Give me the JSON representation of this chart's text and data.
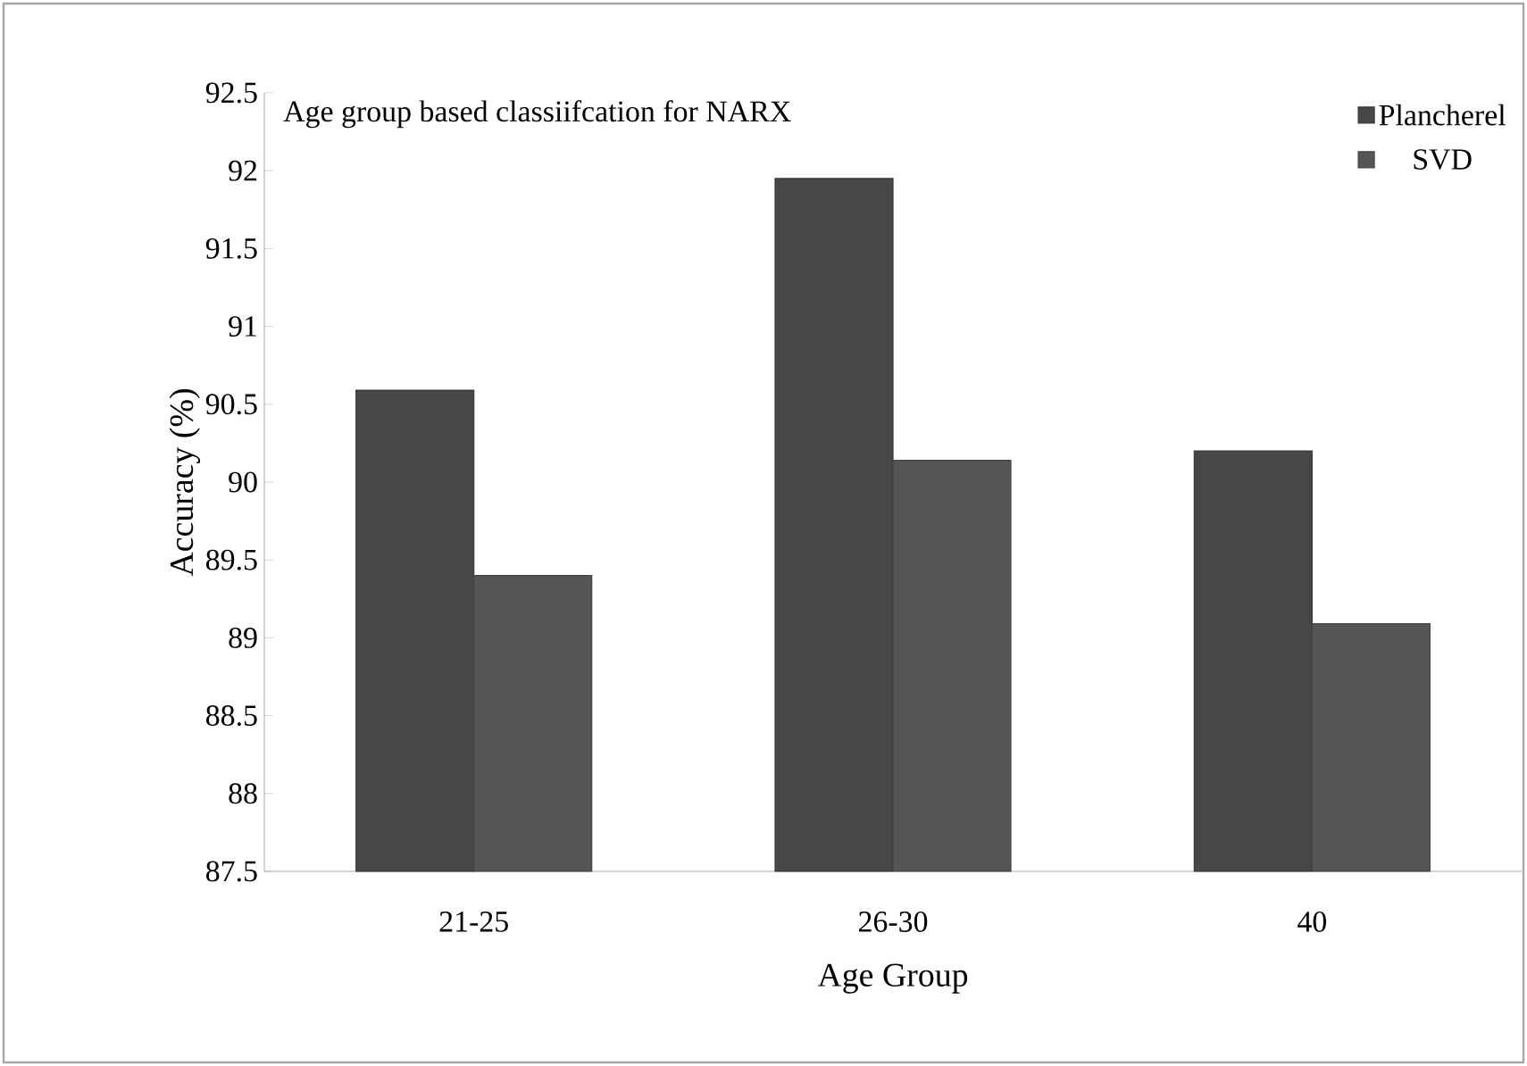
{
  "chart_data": {
    "type": "bar",
    "title": "Age group based classiifcation for NARX",
    "xlabel": "Age Group",
    "ylabel": "Accuracy (%)",
    "categories": [
      "21-25",
      "26-30",
      "40"
    ],
    "series": [
      {
        "name": "Plancherel",
        "color": "#474747",
        "values": [
          90.59,
          91.95,
          90.2
        ]
      },
      {
        "name": "SVD",
        "color": "#555555",
        "values": [
          89.4,
          90.14,
          89.09
        ]
      }
    ],
    "ylim": [
      87.5,
      92.5
    ],
    "yticks": [
      87.5,
      88,
      88.5,
      89,
      89.5,
      90,
      90.5,
      91,
      91.5,
      92,
      92.5
    ],
    "grid": false,
    "legend": "top right"
  }
}
